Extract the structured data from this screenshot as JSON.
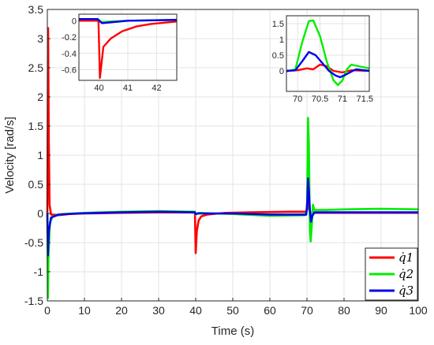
{
  "chart_data": {
    "type": "line",
    "title": "",
    "xlabel": "Time (s)",
    "ylabel": "Velocity [rad/s]",
    "xlim": [
      0,
      100
    ],
    "ylim": [
      -1.5,
      3.5
    ],
    "xticks": [
      "0",
      "10",
      "20",
      "30",
      "40",
      "50",
      "60",
      "70",
      "80",
      "90",
      "100"
    ],
    "yticks": [
      "-1.5",
      "-1",
      "-0.5",
      "0",
      "0.5",
      "1",
      "1.5",
      "2",
      "2.5",
      "3",
      "3.5"
    ],
    "grid": true,
    "legend_position": "bottom-right",
    "series": [
      {
        "name": "q̇1",
        "color": "#ff0000",
        "points": [
          [
            0,
            0
          ],
          [
            0.2,
            3.18
          ],
          [
            0.4,
            1.2
          ],
          [
            0.6,
            0.15
          ],
          [
            1,
            -0.02
          ],
          [
            3,
            -0.03
          ],
          [
            6,
            -0.01
          ],
          [
            10,
            0.0
          ],
          [
            20,
            0.01
          ],
          [
            30,
            0.02
          ],
          [
            39.8,
            0.02
          ],
          [
            40,
            -0.68
          ],
          [
            40.3,
            -0.3
          ],
          [
            40.8,
            -0.12
          ],
          [
            41.5,
            -0.05
          ],
          [
            43,
            -0.02
          ],
          [
            48,
            0.01
          ],
          [
            55,
            0.02
          ],
          [
            65,
            0.03
          ],
          [
            69.9,
            0.03
          ],
          [
            70.2,
            0.08
          ],
          [
            70.5,
            0.2
          ],
          [
            70.7,
            0.1
          ],
          [
            71.0,
            -0.06
          ],
          [
            71.3,
            -0.03
          ],
          [
            72,
            0.01
          ],
          [
            80,
            0.01
          ],
          [
            90,
            0.01
          ],
          [
            100,
            0.01
          ]
        ]
      },
      {
        "name": "q̇2",
        "color": "#00ee00",
        "points": [
          [
            0,
            0
          ],
          [
            0.15,
            -1.45
          ],
          [
            0.3,
            -0.75
          ],
          [
            0.7,
            -0.15
          ],
          [
            1.5,
            -0.05
          ],
          [
            4,
            -0.01
          ],
          [
            10,
            0.01
          ],
          [
            20,
            0.03
          ],
          [
            30,
            0.04
          ],
          [
            39.8,
            0.03
          ],
          [
            40,
            -0.02
          ],
          [
            40.8,
            0.01
          ],
          [
            45,
            0.0
          ],
          [
            50,
            -0.01
          ],
          [
            60,
            -0.04
          ],
          [
            69.5,
            -0.03
          ],
          [
            70.0,
            0.05
          ],
          [
            70.3,
            1.64
          ],
          [
            70.5,
            1.2
          ],
          [
            70.8,
            -0.3
          ],
          [
            71.0,
            -0.48
          ],
          [
            71.3,
            -0.2
          ],
          [
            71.6,
            0.15
          ],
          [
            72,
            0.06
          ],
          [
            75,
            0.06
          ],
          [
            80,
            0.07
          ],
          [
            90,
            0.08
          ],
          [
            100,
            0.07
          ]
        ]
      },
      {
        "name": "q̇3",
        "color": "#0000ee",
        "points": [
          [
            0,
            0
          ],
          [
            0.15,
            -0.72
          ],
          [
            0.4,
            -0.3
          ],
          [
            1,
            -0.07
          ],
          [
            3,
            -0.02
          ],
          [
            8,
            0.0
          ],
          [
            20,
            0.02
          ],
          [
            30,
            0.03
          ],
          [
            39.8,
            0.02
          ],
          [
            40,
            -0.01
          ],
          [
            40.6,
            0.0
          ],
          [
            50,
            0.0
          ],
          [
            60,
            -0.02
          ],
          [
            69.8,
            -0.02
          ],
          [
            70.1,
            0.2
          ],
          [
            70.3,
            0.6
          ],
          [
            70.5,
            0.4
          ],
          [
            70.8,
            0.05
          ],
          [
            71.1,
            -0.14
          ],
          [
            71.4,
            -0.05
          ],
          [
            72,
            0.02
          ],
          [
            80,
            0.02
          ],
          [
            90,
            0.02
          ],
          [
            100,
            0.02
          ]
        ]
      }
    ],
    "insets": [
      {
        "xlim": [
          39.3,
          42.7
        ],
        "ylim": [
          -0.73,
          0.08
        ],
        "xticks": [
          "40",
          "41",
          "42"
        ],
        "yticks": [
          "0",
          "-0.2",
          "-0.4",
          "-0.6"
        ],
        "series": [
          {
            "color": "#ff0000",
            "points": [
              [
                39.3,
                0
              ],
              [
                39.98,
                0
              ],
              [
                40.03,
                -0.7
              ],
              [
                40.15,
                -0.32
              ],
              [
                40.4,
                -0.22
              ],
              [
                40.8,
                -0.13
              ],
              [
                41.3,
                -0.07
              ],
              [
                41.8,
                -0.04
              ],
              [
                42.7,
                -0.01
              ]
            ]
          },
          {
            "color": "#00ee00",
            "points": [
              [
                39.3,
                0.02
              ],
              [
                39.95,
                0.02
              ],
              [
                40.1,
                -0.02
              ],
              [
                40.4,
                -0.01
              ],
              [
                41,
                0.0
              ],
              [
                42.7,
                0.01
              ]
            ]
          },
          {
            "color": "#0000ee",
            "points": [
              [
                39.3,
                0.02
              ],
              [
                39.95,
                0.02
              ],
              [
                40.1,
                -0.03
              ],
              [
                40.4,
                -0.02
              ],
              [
                41,
                0.0
              ],
              [
                42.7,
                0.01
              ]
            ]
          }
        ]
      },
      {
        "xlim": [
          69.75,
          71.6
        ],
        "ylim": [
          -0.65,
          1.75
        ],
        "xticks": [
          "70",
          "70.5",
          "71",
          "71.5"
        ],
        "yticks": [
          "1.5",
          "1",
          "0.5",
          "0"
        ],
        "series": [
          {
            "color": "#ff0000",
            "points": [
              [
                69.75,
                0
              ],
              [
                70.0,
                0.02
              ],
              [
                70.2,
                0.08
              ],
              [
                70.35,
                0.05
              ],
              [
                70.5,
                0.2
              ],
              [
                70.65,
                0.15
              ],
              [
                70.8,
                0.0
              ],
              [
                71.0,
                -0.05
              ],
              [
                71.2,
                0.02
              ],
              [
                71.6,
                0.0
              ]
            ]
          },
          {
            "color": "#00ee00",
            "points": [
              [
                69.75,
                -0.02
              ],
              [
                69.95,
                0.05
              ],
              [
                70.1,
                0.9
              ],
              [
                70.25,
                1.58
              ],
              [
                70.35,
                1.6
              ],
              [
                70.5,
                1.1
              ],
              [
                70.65,
                0.3
              ],
              [
                70.8,
                -0.3
              ],
              [
                70.9,
                -0.45
              ],
              [
                71.0,
                -0.3
              ],
              [
                71.1,
                0.05
              ],
              [
                71.2,
                0.2
              ],
              [
                71.35,
                0.15
              ],
              [
                71.6,
                0.08
              ]
            ]
          },
          {
            "color": "#0000ee",
            "points": [
              [
                69.75,
                0.0
              ],
              [
                69.95,
                0.02
              ],
              [
                70.1,
                0.3
              ],
              [
                70.25,
                0.6
              ],
              [
                70.4,
                0.5
              ],
              [
                70.55,
                0.25
              ],
              [
                70.7,
                0.0
              ],
              [
                70.85,
                -0.15
              ],
              [
                70.95,
                -0.2
              ],
              [
                71.1,
                -0.1
              ],
              [
                71.3,
                0.05
              ],
              [
                71.6,
                0.0
              ]
            ]
          }
        ]
      }
    ]
  }
}
